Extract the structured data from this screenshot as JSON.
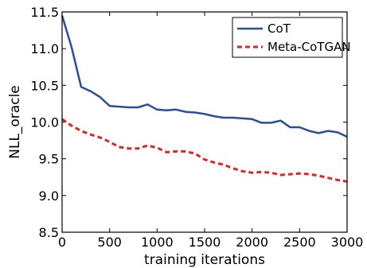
{
  "chart_data": {
    "type": "line",
    "xlabel": "training iterations",
    "ylabel": "NLL_oracle",
    "xlim": [
      0,
      3000
    ],
    "ylim": [
      8.5,
      11.5
    ],
    "x_ticks": [
      0,
      500,
      1000,
      1500,
      2000,
      2500,
      3000
    ],
    "x_tick_labels": [
      "0",
      "500",
      "1000",
      "1500",
      "2000",
      "2500",
      "3000"
    ],
    "y_ticks": [
      8.5,
      9.0,
      9.5,
      10.0,
      10.5,
      11.0,
      11.5
    ],
    "y_tick_labels": [
      "8.5",
      "9.0",
      "9.5",
      "10.0",
      "10.5",
      "11.0",
      "11.5"
    ],
    "grid": false,
    "legend_position": "top-right",
    "series": [
      {
        "name": "CoT",
        "color": "#2a4d9c",
        "line_style": "solid",
        "x": [
          0,
          100,
          200,
          300,
          400,
          500,
          600,
          700,
          800,
          900,
          1000,
          1100,
          1200,
          1300,
          1400,
          1500,
          1600,
          1700,
          1800,
          1900,
          2000,
          2100,
          2200,
          2300,
          2400,
          2500,
          2600,
          2700,
          2800,
          2900,
          3000
        ],
        "y": [
          11.45,
          11.02,
          10.48,
          10.42,
          10.34,
          10.22,
          10.21,
          10.2,
          10.2,
          10.24,
          10.17,
          10.16,
          10.17,
          10.14,
          10.13,
          10.11,
          10.08,
          10.06,
          10.06,
          10.05,
          10.04,
          9.99,
          9.99,
          10.02,
          9.93,
          9.93,
          9.88,
          9.85,
          9.88,
          9.86,
          9.8
        ]
      },
      {
        "name": "Meta-CoTGAN",
        "color": "#e0242b",
        "line_style": "dashed",
        "x": [
          0,
          100,
          200,
          300,
          400,
          500,
          600,
          700,
          800,
          900,
          1000,
          1100,
          1200,
          1300,
          1400,
          1500,
          1600,
          1700,
          1800,
          1900,
          2000,
          2100,
          2200,
          2300,
          2400,
          2500,
          2600,
          2700,
          2800,
          2900,
          3000
        ],
        "y": [
          10.04,
          9.95,
          9.88,
          9.83,
          9.79,
          9.73,
          9.66,
          9.64,
          9.64,
          9.68,
          9.65,
          9.59,
          9.6,
          9.6,
          9.57,
          9.49,
          9.45,
          9.42,
          9.37,
          9.33,
          9.31,
          9.32,
          9.31,
          9.28,
          9.29,
          9.3,
          9.29,
          9.27,
          9.24,
          9.21,
          9.19
        ]
      }
    ]
  }
}
